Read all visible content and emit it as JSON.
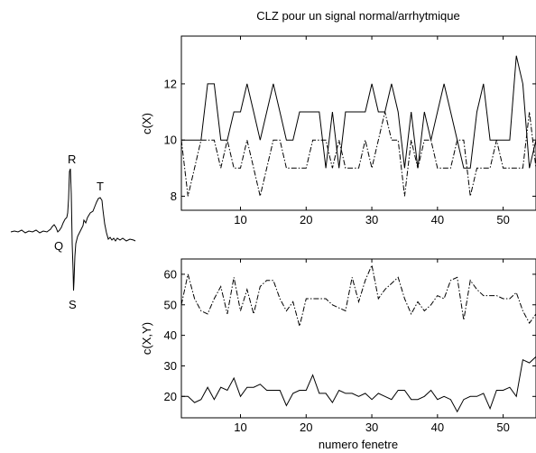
{
  "title": "CLZ pour un signal normal/arrhytmique",
  "ecg": {
    "labels": {
      "P": "",
      "Q": "Q",
      "R": "R",
      "S": "S",
      "T": "T"
    }
  },
  "chart_data": [
    {
      "type": "line",
      "ylabel": "c(X)",
      "xlabel": "",
      "xlim": [
        1,
        55
      ],
      "ylim": [
        7.5,
        13.7
      ],
      "xticks": [
        10,
        20,
        30,
        40,
        50
      ],
      "yticks": [
        8,
        10,
        12
      ],
      "series": [
        {
          "style": "solid",
          "x": [
            1,
            2,
            3,
            4,
            5,
            6,
            7,
            8,
            9,
            10,
            11,
            12,
            13,
            14,
            15,
            16,
            17,
            18,
            19,
            20,
            21,
            22,
            23,
            24,
            25,
            26,
            27,
            28,
            29,
            30,
            31,
            32,
            33,
            34,
            35,
            36,
            37,
            38,
            39,
            40,
            41,
            42,
            43,
            44,
            45,
            46,
            47,
            48,
            49,
            50,
            51,
            52,
            53,
            54,
            55
          ],
          "values": [
            10,
            10,
            10,
            10,
            12,
            12,
            10,
            10,
            11,
            11,
            12,
            11,
            10,
            11,
            12,
            11,
            10,
            10,
            11,
            11,
            11,
            11,
            9,
            11,
            9,
            11,
            11,
            11,
            11,
            12,
            11,
            11,
            12,
            11,
            9,
            11,
            9,
            11,
            10,
            11,
            12,
            11,
            10,
            9,
            9,
            11,
            12,
            10,
            10,
            10,
            10,
            13,
            12,
            9,
            10
          ]
        },
        {
          "style": "dashdot",
          "x": [
            1,
            2,
            3,
            4,
            5,
            6,
            7,
            8,
            9,
            10,
            11,
            12,
            13,
            14,
            15,
            16,
            17,
            18,
            19,
            20,
            21,
            22,
            23,
            24,
            25,
            26,
            27,
            28,
            29,
            30,
            31,
            32,
            33,
            34,
            35,
            36,
            37,
            38,
            39,
            40,
            41,
            42,
            43,
            44,
            45,
            46,
            47,
            48,
            49,
            50,
            51,
            52,
            53,
            54,
            55
          ],
          "values": [
            10,
            8,
            9,
            10,
            10,
            10,
            9,
            10,
            9,
            9,
            10,
            9,
            8,
            9,
            10,
            10,
            9,
            9,
            9,
            9,
            10,
            10,
            10,
            9,
            10,
            9,
            9,
            9,
            10,
            9,
            10,
            11,
            10,
            10,
            8,
            10,
            9,
            10,
            10,
            9,
            9,
            9,
            10,
            10,
            8,
            9,
            9,
            9,
            10,
            9,
            9,
            9,
            9,
            11,
            9
          ]
        }
      ]
    },
    {
      "type": "line",
      "ylabel": "c(X,Y)",
      "xlabel": "numero fenetre",
      "xlim": [
        1,
        55
      ],
      "ylim": [
        13,
        65
      ],
      "xticks": [
        10,
        20,
        30,
        40,
        50
      ],
      "yticks": [
        20,
        30,
        40,
        50,
        60
      ],
      "series": [
        {
          "style": "dashdot",
          "x": [
            1,
            2,
            3,
            4,
            5,
            6,
            7,
            8,
            9,
            10,
            11,
            12,
            13,
            14,
            15,
            16,
            17,
            18,
            19,
            20,
            21,
            22,
            23,
            24,
            25,
            26,
            27,
            28,
            29,
            30,
            31,
            32,
            33,
            34,
            35,
            36,
            37,
            38,
            39,
            40,
            41,
            42,
            43,
            44,
            45,
            46,
            47,
            48,
            49,
            50,
            51,
            52,
            53,
            54,
            55
          ],
          "values": [
            50,
            60,
            52,
            48,
            47,
            52,
            56,
            47,
            59,
            48,
            55,
            47,
            56,
            58,
            58,
            52,
            48,
            51,
            43,
            52,
            52,
            52,
            52,
            50,
            49,
            48,
            59,
            51,
            58,
            63,
            52,
            55,
            57,
            59,
            52,
            47,
            51,
            48,
            50,
            53,
            52,
            58,
            59,
            45,
            58,
            55,
            53,
            53,
            53,
            52,
            52,
            54,
            48,
            44,
            47
          ]
        },
        {
          "style": "solid",
          "x": [
            1,
            2,
            3,
            4,
            5,
            6,
            7,
            8,
            9,
            10,
            11,
            12,
            13,
            14,
            15,
            16,
            17,
            18,
            19,
            20,
            21,
            22,
            23,
            24,
            25,
            26,
            27,
            28,
            29,
            30,
            31,
            32,
            33,
            34,
            35,
            36,
            37,
            38,
            39,
            40,
            41,
            42,
            43,
            44,
            45,
            46,
            47,
            48,
            49,
            50,
            51,
            52,
            53,
            54,
            55
          ],
          "values": [
            20,
            20,
            18,
            19,
            23,
            19,
            23,
            22,
            26,
            20,
            23,
            23,
            24,
            22,
            22,
            22,
            17,
            21,
            22,
            22,
            27,
            21,
            21,
            18,
            22,
            21,
            21,
            20,
            21,
            19,
            21,
            20,
            19,
            22,
            22,
            19,
            19,
            20,
            22,
            19,
            20,
            19,
            15,
            19,
            20,
            20,
            21,
            16,
            22,
            22,
            23,
            20,
            32,
            31,
            33
          ]
        }
      ]
    }
  ]
}
